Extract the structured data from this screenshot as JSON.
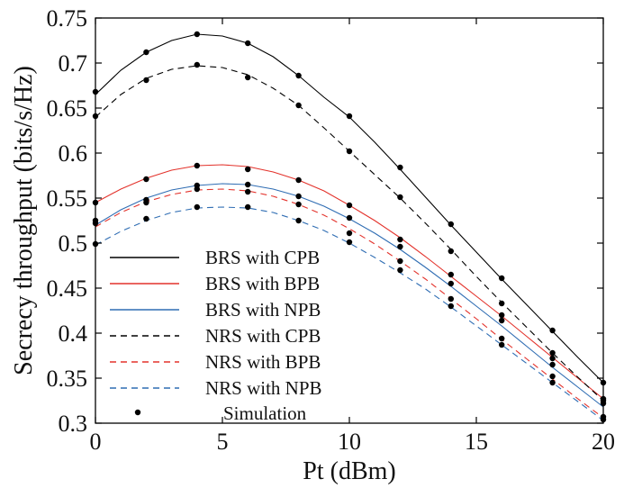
{
  "chart_data": {
    "type": "line",
    "title": "",
    "xlabel": "Pt (dBm)",
    "ylabel": "Secrecy throughput (bits/s/Hz)",
    "xlim": [
      0,
      20
    ],
    "ylim": [
      0.3,
      0.75
    ],
    "xticks": [
      0,
      5,
      10,
      15,
      20
    ],
    "xtick_labels": [
      "0",
      "5",
      "10",
      "15",
      "20"
    ],
    "yticks": [
      0.3,
      0.35,
      0.4,
      0.45,
      0.5,
      0.55,
      0.6,
      0.65,
      0.7,
      0.75
    ],
    "ytick_labels": [
      "0.3",
      "0.35",
      "0.4",
      "0.45",
      "0.5",
      "0.55",
      "0.6",
      "0.65",
      "0.7",
      "0.75"
    ],
    "grid": false,
    "legend_position": "bottom-left",
    "x": [
      0,
      1,
      2,
      3,
      4,
      5,
      6,
      7,
      8,
      9,
      10,
      11,
      12,
      13,
      14,
      15,
      16,
      17,
      18,
      19,
      20
    ],
    "series": [
      {
        "name": "BRS with CPB",
        "color": "#000000",
        "dash": "solid",
        "values": [
          0.665,
          0.692,
          0.712,
          0.725,
          0.732,
          0.73,
          0.722,
          0.707,
          0.686,
          0.662,
          0.64,
          0.612,
          0.582,
          0.551,
          0.52,
          0.49,
          0.46,
          0.431,
          0.402,
          0.373,
          0.345
        ]
      },
      {
        "name": "BRS with BPB",
        "color": "#e3322b",
        "dash": "solid",
        "values": [
          0.545,
          0.56,
          0.572,
          0.581,
          0.586,
          0.587,
          0.585,
          0.579,
          0.57,
          0.558,
          0.542,
          0.525,
          0.506,
          0.485,
          0.463,
          0.441,
          0.419,
          0.396,
          0.373,
          0.35,
          0.327
        ]
      },
      {
        "name": "BRS with NPB",
        "color": "#2f6db3",
        "dash": "solid",
        "values": [
          0.52,
          0.537,
          0.55,
          0.559,
          0.564,
          0.566,
          0.565,
          0.56,
          0.552,
          0.541,
          0.527,
          0.511,
          0.493,
          0.473,
          0.452,
          0.43,
          0.408,
          0.385,
          0.362,
          0.34,
          0.318
        ]
      },
      {
        "name": "NRS with CPB",
        "color": "#000000",
        "dash": "dashed",
        "values": [
          0.64,
          0.665,
          0.683,
          0.693,
          0.697,
          0.695,
          0.687,
          0.672,
          0.653,
          0.628,
          0.602,
          0.576,
          0.55,
          0.522,
          0.493,
          0.463,
          0.434,
          0.406,
          0.378,
          0.351,
          0.325
        ]
      },
      {
        "name": "NRS with BPB",
        "color": "#e3322b",
        "dash": "dashed",
        "values": [
          0.518,
          0.534,
          0.546,
          0.554,
          0.559,
          0.56,
          0.558,
          0.552,
          0.543,
          0.531,
          0.516,
          0.499,
          0.48,
          0.46,
          0.438,
          0.416,
          0.393,
          0.371,
          0.349,
          0.327,
          0.306
        ]
      },
      {
        "name": "NRS with NPB",
        "color": "#2f6db3",
        "dash": "dashed",
        "values": [
          0.498,
          0.513,
          0.525,
          0.534,
          0.539,
          0.54,
          0.539,
          0.534,
          0.525,
          0.514,
          0.5,
          0.484,
          0.467,
          0.449,
          0.429,
          0.408,
          0.387,
          0.366,
          0.345,
          0.324,
          0.303
        ]
      }
    ],
    "simulation": {
      "name": "Simulation",
      "color": "#000000",
      "x": [
        0,
        2,
        4,
        6,
        8,
        10,
        12,
        14,
        16,
        18,
        20
      ],
      "points": [
        [
          0.668,
          0.712,
          0.732,
          0.722,
          0.686,
          0.641,
          0.584,
          0.521,
          0.461,
          0.403,
          0.345
        ],
        [
          0.545,
          0.571,
          0.586,
          0.582,
          0.57,
          0.542,
          0.504,
          0.465,
          0.42,
          0.372,
          0.325
        ],
        [
          0.525,
          0.548,
          0.564,
          0.565,
          0.552,
          0.528,
          0.496,
          0.455,
          0.414,
          0.365,
          0.322
        ],
        [
          0.641,
          0.681,
          0.698,
          0.684,
          0.653,
          0.602,
          0.551,
          0.491,
          0.433,
          0.378,
          0.327
        ],
        [
          0.522,
          0.545,
          0.56,
          0.557,
          0.543,
          0.511,
          0.48,
          0.438,
          0.394,
          0.352,
          0.307
        ],
        [
          0.499,
          0.527,
          0.54,
          0.54,
          0.525,
          0.501,
          0.47,
          0.43,
          0.387,
          0.345,
          0.304
        ]
      ]
    }
  }
}
